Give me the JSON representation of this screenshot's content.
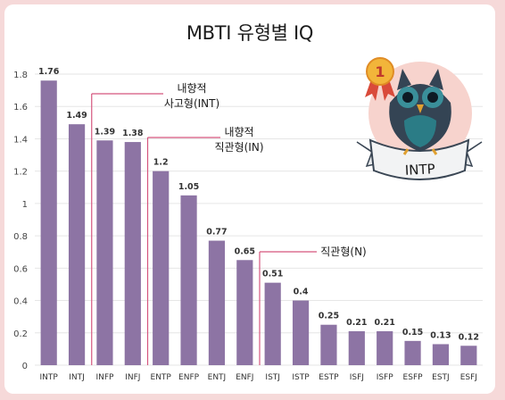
{
  "chart_data": {
    "type": "bar",
    "title": "MBTI 유형별 IQ",
    "categories": [
      "INTP",
      "INTJ",
      "INFP",
      "INFJ",
      "ENTP",
      "ENFP",
      "ENTJ",
      "ENFJ",
      "ISTJ",
      "ISTP",
      "ESTP",
      "ISFJ",
      "ISFP",
      "ESFP",
      "ESTJ",
      "ESFJ"
    ],
    "values": [
      1.76,
      1.49,
      1.39,
      1.38,
      1.2,
      1.05,
      0.77,
      0.65,
      0.51,
      0.4,
      0.25,
      0.21,
      0.21,
      0.15,
      0.13,
      0.12
    ],
    "value_labels": [
      "1.76",
      "1.49",
      "1.39",
      "1.38",
      "1.2",
      "1.05",
      "0.77",
      "0.65",
      "0.51",
      "0.4",
      "0.25",
      "0.21",
      "0.21",
      "0.15",
      "0.13",
      "0.12"
    ],
    "ylim": [
      0,
      1.8
    ],
    "yticks": [
      "0",
      "0.2",
      "0.4",
      "0.6",
      "0.8",
      "1",
      "1.2",
      "1.4",
      "1.6",
      "1.8"
    ],
    "xlabel": "",
    "ylabel": "",
    "grid": true,
    "bar_color": "#8d74a4",
    "annotations": [
      {
        "line1": "내향적",
        "line2": "사고형(INT)",
        "start_index": 2
      },
      {
        "line1": "내향적",
        "line2": "직관형(IN)",
        "start_index": 4
      },
      {
        "line1": "",
        "line2": "직관형(N)",
        "start_index": 8
      }
    ]
  },
  "badge": {
    "label": "INTP",
    "rank": "1"
  },
  "colors": {
    "accent": "#d5567e",
    "background": "#f6d9d9"
  }
}
